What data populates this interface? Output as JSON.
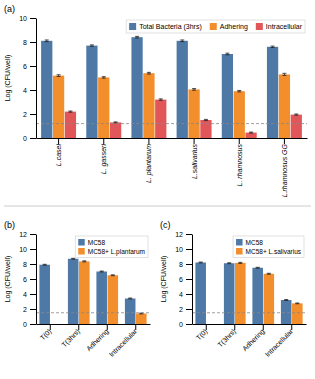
{
  "chart_data": [
    {
      "type": "bar",
      "title": "(a)",
      "categories": [
        "L.casei",
        "L. gasseri",
        "L. plantarum",
        "L.salivarius",
        "L. rhamnosus",
        "L.rhamnosus GG"
      ],
      "series": [
        {
          "name": "Total Bacteria (3hrs)",
          "values": [
            8.1,
            7.7,
            8.4,
            8.1,
            7.0,
            7.6
          ],
          "errors": [
            0.07,
            0.06,
            0.07,
            0.07,
            0.07,
            0.06
          ]
        },
        {
          "name": "Adhering",
          "values": [
            5.2,
            5.05,
            5.4,
            4.05,
            3.9,
            5.3
          ],
          "errors": [
            0.07,
            0.06,
            0.07,
            0.07,
            0.06,
            0.09
          ]
        },
        {
          "name": "Intracellular",
          "values": [
            2.2,
            1.3,
            3.2,
            1.5,
            0.45,
            1.95
          ],
          "errors": [
            0.05,
            0.04,
            0.06,
            0.05,
            0.04,
            0.05
          ]
        }
      ],
      "ylabel": "Log (CFU/well)",
      "ylim": [
        0,
        10
      ],
      "yticks": [
        0,
        2,
        4,
        6,
        8,
        10
      ],
      "reference_line": 1.2,
      "legend": "upper right",
      "grid": false
    },
    {
      "type": "bar",
      "title": "(b)",
      "categories": [
        "T(0)",
        "T(3hrs)",
        "Adhering",
        "Intracellular"
      ],
      "series": [
        {
          "name": "MC58",
          "values": [
            7.9,
            8.7,
            7.0,
            3.4
          ],
          "errors": [
            0.06,
            0.06,
            0.06,
            0.06
          ]
        },
        {
          "name": "MC58+ L.plantarum",
          "values": [
            null,
            8.35,
            6.5,
            1.4
          ],
          "errors": [
            null,
            0.07,
            0.06,
            0.05
          ]
        }
      ],
      "ylabel": "Log (CFU/well)",
      "ylim": [
        0,
        12
      ],
      "yticks": [
        0,
        2,
        4,
        6,
        8,
        10,
        12
      ],
      "reference_line": 1.5,
      "legend": "upper right",
      "grid": false
    },
    {
      "type": "bar",
      "title": "(c)",
      "categories": [
        "T(0)",
        "T(3hrs)",
        "Adhering",
        "Intracellular"
      ],
      "series": [
        {
          "name": "MC58",
          "values": [
            8.2,
            8.1,
            7.5,
            3.2
          ],
          "errors": [
            0.06,
            0.06,
            0.06,
            0.06
          ]
        },
        {
          "name": "MC58+ L.salivarius",
          "values": [
            null,
            8.15,
            6.7,
            2.75
          ],
          "errors": [
            null,
            0.07,
            0.06,
            0.05
          ]
        }
      ],
      "ylabel": "Log (CFU/well)",
      "ylim": [
        0,
        12
      ],
      "yticks": [
        0,
        2,
        4,
        6,
        8,
        10,
        12
      ],
      "reference_line": 1.5,
      "legend": "upper right",
      "grid": false
    }
  ]
}
